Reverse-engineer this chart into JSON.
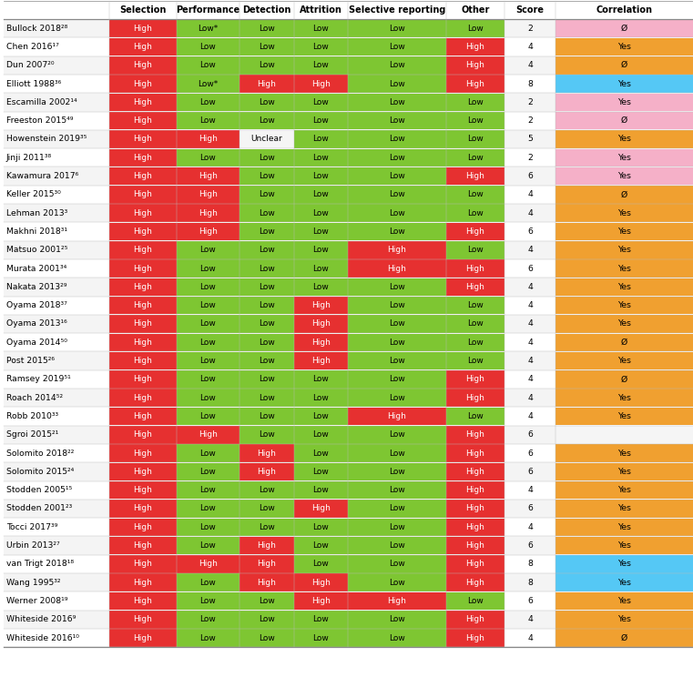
{
  "rows": [
    {
      "name": "Bullock 2018²⁸",
      "sel": "High",
      "perf": "Low*",
      "det": "Low",
      "att": "Low",
      "sr": "Low",
      "oth": "Low",
      "score": "2",
      "corr": "Ø",
      "cc": "pink"
    },
    {
      "name": "Chen 2016¹⁷",
      "sel": "High",
      "perf": "Low",
      "det": "Low",
      "att": "Low",
      "sr": "Low",
      "oth": "High",
      "score": "4",
      "corr": "Yes",
      "cc": "orange"
    },
    {
      "name": "Dun 2007²⁰",
      "sel": "High",
      "perf": "Low",
      "det": "Low",
      "att": "Low",
      "sr": "Low",
      "oth": "High",
      "score": "4",
      "corr": "Ø",
      "cc": "orange"
    },
    {
      "name": "Elliott 1988³⁶",
      "sel": "High",
      "perf": "Low*",
      "det": "High",
      "att": "High",
      "sr": "Low",
      "oth": "High",
      "score": "8",
      "corr": "Yes",
      "cc": "blue"
    },
    {
      "name": "Escamilla 2002¹⁴",
      "sel": "High",
      "perf": "Low",
      "det": "Low",
      "att": "Low",
      "sr": "Low",
      "oth": "Low",
      "score": "2",
      "corr": "Yes",
      "cc": "pink"
    },
    {
      "name": "Freeston 2015⁴⁹",
      "sel": "High",
      "perf": "Low",
      "det": "Low",
      "att": "Low",
      "sr": "Low",
      "oth": "Low",
      "score": "2",
      "corr": "Ø",
      "cc": "pink"
    },
    {
      "name": "Howenstein 2019³⁵",
      "sel": "High",
      "perf": "High",
      "det": "Unclear",
      "att": "Low",
      "sr": "Low",
      "oth": "Low",
      "score": "5",
      "corr": "Yes",
      "cc": "orange"
    },
    {
      "name": "Jinji 2011³⁸",
      "sel": "High",
      "perf": "Low",
      "det": "Low",
      "att": "Low",
      "sr": "Low",
      "oth": "Low",
      "score": "2",
      "corr": "Yes",
      "cc": "pink"
    },
    {
      "name": "Kawamura 2017⁶",
      "sel": "High",
      "perf": "High",
      "det": "Low",
      "att": "Low",
      "sr": "Low",
      "oth": "High",
      "score": "6",
      "corr": "Yes",
      "cc": "pink"
    },
    {
      "name": "Keller 2015³⁰",
      "sel": "High",
      "perf": "High",
      "det": "Low",
      "att": "Low",
      "sr": "Low",
      "oth": "Low",
      "score": "4",
      "corr": "Ø",
      "cc": "orange"
    },
    {
      "name": "Lehman 2013³",
      "sel": "High",
      "perf": "High",
      "det": "Low",
      "att": "Low",
      "sr": "Low",
      "oth": "Low",
      "score": "4",
      "corr": "Yes",
      "cc": "orange"
    },
    {
      "name": "Makhni 2018³¹",
      "sel": "High",
      "perf": "High",
      "det": "Low",
      "att": "Low",
      "sr": "Low",
      "oth": "High",
      "score": "6",
      "corr": "Yes",
      "cc": "orange"
    },
    {
      "name": "Matsuo 2001²⁵",
      "sel": "High",
      "perf": "Low",
      "det": "Low",
      "att": "Low",
      "sr": "High",
      "oth": "Low",
      "score": "4",
      "corr": "Yes",
      "cc": "orange"
    },
    {
      "name": "Murata 2001³⁴",
      "sel": "High",
      "perf": "Low",
      "det": "Low",
      "att": "Low",
      "sr": "High",
      "oth": "High",
      "score": "6",
      "corr": "Yes",
      "cc": "orange"
    },
    {
      "name": "Nakata 2013²⁹",
      "sel": "High",
      "perf": "Low",
      "det": "Low",
      "att": "Low",
      "sr": "Low",
      "oth": "High",
      "score": "4",
      "corr": "Yes",
      "cc": "orange"
    },
    {
      "name": "Oyama 2018³⁷",
      "sel": "High",
      "perf": "Low",
      "det": "Low",
      "att": "High",
      "sr": "Low",
      "oth": "Low",
      "score": "4",
      "corr": "Yes",
      "cc": "orange"
    },
    {
      "name": "Oyama 2013¹⁶",
      "sel": "High",
      "perf": "Low",
      "det": "Low",
      "att": "High",
      "sr": "Low",
      "oth": "Low",
      "score": "4",
      "corr": "Yes",
      "cc": "orange"
    },
    {
      "name": "Oyama 2014⁵⁰",
      "sel": "High",
      "perf": "Low",
      "det": "Low",
      "att": "High",
      "sr": "Low",
      "oth": "Low",
      "score": "4",
      "corr": "Ø",
      "cc": "orange"
    },
    {
      "name": "Post 2015²⁶",
      "sel": "High",
      "perf": "Low",
      "det": "Low",
      "att": "High",
      "sr": "Low",
      "oth": "Low",
      "score": "4",
      "corr": "Yes",
      "cc": "orange"
    },
    {
      "name": "Ramsey 2019⁵¹",
      "sel": "High",
      "perf": "Low",
      "det": "Low",
      "att": "Low",
      "sr": "Low",
      "oth": "High",
      "score": "4",
      "corr": "Ø",
      "cc": "orange"
    },
    {
      "name": "Roach 2014⁵²",
      "sel": "High",
      "perf": "Low",
      "det": "Low",
      "att": "Low",
      "sr": "Low",
      "oth": "High",
      "score": "4",
      "corr": "Yes",
      "cc": "orange"
    },
    {
      "name": "Robb 2010³³",
      "sel": "High",
      "perf": "Low",
      "det": "Low",
      "att": "Low",
      "sr": "High",
      "oth": "Low",
      "score": "4",
      "corr": "Yes",
      "cc": "orange"
    },
    {
      "name": "Sgroi 2015²¹",
      "sel": "High",
      "perf": "High",
      "det": "Low",
      "att": "Low",
      "sr": "Low",
      "oth": "High",
      "score": "6",
      "corr": "",
      "cc": "none"
    },
    {
      "name": "Solomito 2018²²",
      "sel": "High",
      "perf": "Low",
      "det": "High",
      "att": "Low",
      "sr": "Low",
      "oth": "High",
      "score": "6",
      "corr": "Yes",
      "cc": "orange"
    },
    {
      "name": "Solomito 2015²⁴",
      "sel": "High",
      "perf": "Low",
      "det": "High",
      "att": "Low",
      "sr": "Low",
      "oth": "High",
      "score": "6",
      "corr": "Yes",
      "cc": "orange"
    },
    {
      "name": "Stodden 2005¹⁵",
      "sel": "High",
      "perf": "Low",
      "det": "Low",
      "att": "Low",
      "sr": "Low",
      "oth": "High",
      "score": "4",
      "corr": "Yes",
      "cc": "orange"
    },
    {
      "name": "Stodden 2001²³",
      "sel": "High",
      "perf": "Low",
      "det": "Low",
      "att": "High",
      "sr": "Low",
      "oth": "High",
      "score": "6",
      "corr": "Yes",
      "cc": "orange"
    },
    {
      "name": "Tocci 2017³⁹",
      "sel": "High",
      "perf": "Low",
      "det": "Low",
      "att": "Low",
      "sr": "Low",
      "oth": "High",
      "score": "4",
      "corr": "Yes",
      "cc": "orange"
    },
    {
      "name": "Urbin 2013²⁷",
      "sel": "High",
      "perf": "Low",
      "det": "High",
      "att": "Low",
      "sr": "Low",
      "oth": "High",
      "score": "6",
      "corr": "Yes",
      "cc": "orange"
    },
    {
      "name": "van Trigt 2018¹⁸",
      "sel": "High",
      "perf": "High",
      "det": "High",
      "att": "Low",
      "sr": "Low",
      "oth": "High",
      "score": "8",
      "corr": "Yes",
      "cc": "blue"
    },
    {
      "name": "Wang 1995³²",
      "sel": "High",
      "perf": "Low",
      "det": "High",
      "att": "High",
      "sr": "Low",
      "oth": "High",
      "score": "8",
      "corr": "Yes",
      "cc": "blue"
    },
    {
      "name": "Werner 2008¹⁹",
      "sel": "High",
      "perf": "Low",
      "det": "Low",
      "att": "High",
      "sr": "High",
      "oth": "Low",
      "score": "6",
      "corr": "Yes",
      "cc": "orange"
    },
    {
      "name": "Whiteside 2016⁹",
      "sel": "High",
      "perf": "Low",
      "det": "Low",
      "att": "Low",
      "sr": "Low",
      "oth": "High",
      "score": "4",
      "corr": "Yes",
      "cc": "orange"
    },
    {
      "name": "Whiteside 2016¹⁰",
      "sel": "High",
      "perf": "Low",
      "det": "Low",
      "att": "Low",
      "sr": "Low",
      "oth": "High",
      "score": "4",
      "corr": "Ø",
      "cc": "orange"
    }
  ],
  "col_headers": [
    "Selection",
    "Performance",
    "Detection",
    "Attrition",
    "Selective reporting",
    "Other",
    "Score",
    "Correlation"
  ],
  "c_high": "#e63030",
  "c_low": "#7ec632",
  "c_unclear": "#f5f5f5",
  "cc_orange": "#f0a030",
  "cc_pink": "#f5b0c8",
  "cc_blue": "#55c8f5",
  "cc_none": "#f5f5f5",
  "header_line_color": "#888888",
  "grid_color": "#bbbbbb",
  "name_color": "#000000",
  "hdr_color": "#000000"
}
